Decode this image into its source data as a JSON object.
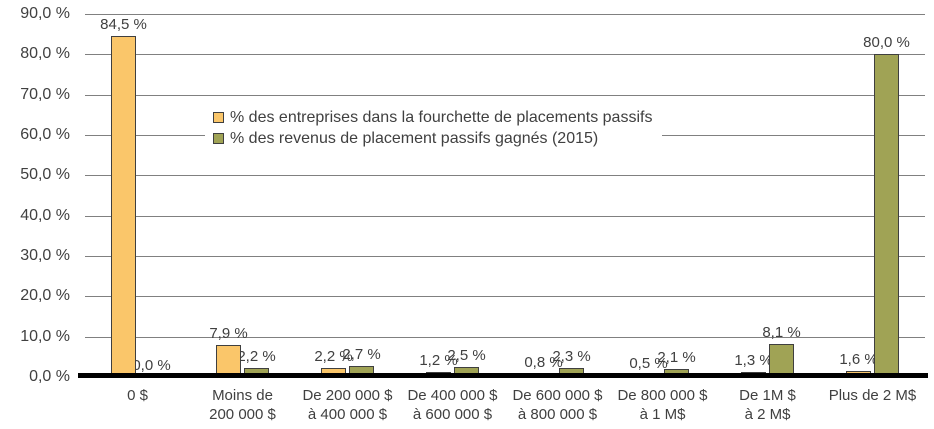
{
  "chart_data": {
    "type": "bar",
    "title": "",
    "xlabel": "",
    "ylabel": "",
    "ylim": [
      0,
      90
    ],
    "grid": true,
    "legend_position": "inside-top-center",
    "yticks": [
      "0,0 %",
      "10,0 %",
      "20,0 %",
      "30,0 %",
      "40,0 %",
      "50,0 %",
      "60,0 %",
      "70,0 %",
      "80,0 %",
      "90,0 %"
    ],
    "categories": [
      "0 $",
      "Moins de\n200 000 $",
      "De 200 000 $\nà 400 000 $",
      "De 400 000 $\nà 600 000 $",
      "De 600 000 $\nà 800 000 $",
      "De 800 000 $\nà 1 M$",
      "De 1M $\nà 2 M$",
      "Plus de 2 M$"
    ],
    "series": [
      {
        "name": "% des entreprises dans la fourchette de placements passifs",
        "color": "#FAC66A",
        "border_color": "#3F3F3F",
        "values": [
          84.5,
          7.9,
          2.2,
          1.2,
          0.8,
          0.5,
          1.3,
          1.6
        ],
        "labels": [
          "84,5 %",
          "7,9 %",
          "2,2 %",
          "1,2 %",
          "0,8 %",
          "0,5 %",
          "1,3 %",
          "1,6 %"
        ]
      },
      {
        "name": "% des revenus de placement passifs gagnés (2015)",
        "color": "#A0A355",
        "border_color": "#3F3F3F",
        "values": [
          0.0,
          2.2,
          2.7,
          2.5,
          2.3,
          2.1,
          8.1,
          80.0
        ],
        "labels": [
          "0,0 %",
          "2,2 %",
          "2,7 %",
          "2,5 %",
          "2,3 %",
          "2,1 %",
          "8,1 %",
          "80,0 %"
        ]
      }
    ],
    "colors": {
      "text": "#404040",
      "gridline": "#808080",
      "axis": "#000000",
      "background": "#FFFFFF"
    }
  }
}
